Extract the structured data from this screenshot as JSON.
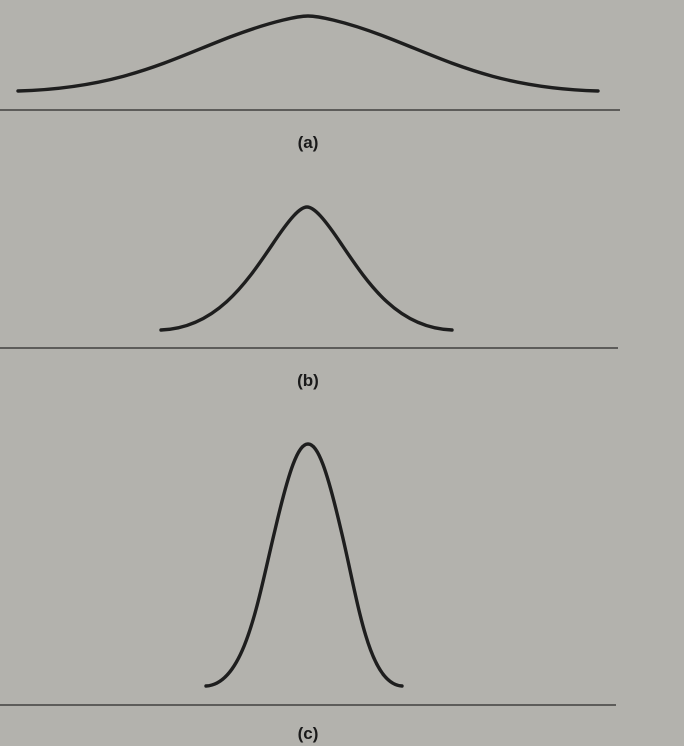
{
  "panels": [
    {
      "label": "(a)",
      "shape": "wide bell curve"
    },
    {
      "label": "(b)",
      "shape": "medium bell curve"
    },
    {
      "label": "(c)",
      "shape": "narrow bell curve"
    }
  ],
  "colors": {
    "background": "#b3b2ad",
    "ink": "#1e1e1e"
  }
}
